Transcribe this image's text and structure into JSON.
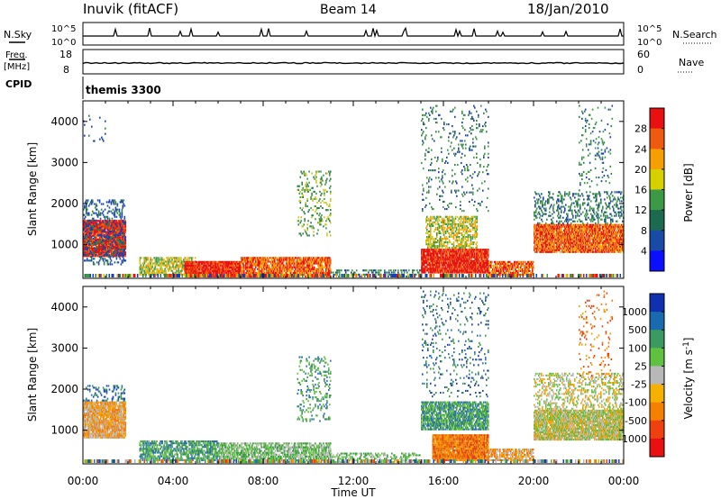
{
  "header": {
    "station": "Inuvik (fitACF)",
    "beam": "Beam 14",
    "date": "18/Jan/2010"
  },
  "top_panels": {
    "nsky_label": "N.Sky",
    "nsky_ticks": [
      "10^5",
      "10^0"
    ],
    "nsearch_label": "N.Search",
    "nsearch_ticks": [
      "10^5",
      "10^0"
    ],
    "freq_label": "Freq.",
    "freq_unit": "[MHz]",
    "freq_ticks": [
      "18",
      "8"
    ],
    "nave_label": "Nave",
    "nave_ticks": [
      "60",
      "0"
    ],
    "cpid_label": "CPID",
    "cpid_value": "themis 3300"
  },
  "chart_data": [
    {
      "type": "heatmap",
      "name": "power-panel",
      "xlabel": "",
      "ylabel": "Slant Range [km]",
      "y_ticks": [
        1000,
        2000,
        3000,
        4000
      ],
      "ylim": [
        180,
        4500
      ],
      "xlim_hours": [
        0,
        24
      ],
      "colorbar": {
        "label": "Power [dB]",
        "ticks": [
          "28",
          "24",
          "20",
          "16",
          "12",
          "8",
          "4"
        ],
        "colors": [
          "#e81010",
          "#f05a10",
          "#f5a000",
          "#d6d000",
          "#3c9a46",
          "#1c6a50",
          "#1a4aa8",
          "#0a10ff"
        ]
      },
      "scatter_colors": [
        "#1a3fb0",
        "#1a3fb0",
        "#2a8040",
        "#3c9a46",
        "#c8c820",
        "#f5a000",
        "#f06010",
        "#e81010"
      ]
    },
    {
      "type": "heatmap",
      "name": "velocity-panel",
      "xlabel": "Time UT",
      "ylabel": "Slant Range [km]",
      "y_ticks": [
        1000,
        2000,
        3000,
        4000
      ],
      "ylim": [
        180,
        4500
      ],
      "xlim_hours": [
        0,
        24
      ],
      "x_ticks": [
        "00:00",
        "04:00",
        "08:00",
        "12:00",
        "16:00",
        "20:00",
        "00:00"
      ],
      "colorbar": {
        "label": "Velocity [m s",
        "label_sup": "-1",
        "label_end": "]",
        "ticks": [
          "1000",
          "500",
          "100",
          "25",
          "-25",
          "-100",
          "-500",
          "-1000"
        ],
        "colors": [
          "#1030b0",
          "#1a6ab0",
          "#3a9a60",
          "#60c040",
          "#b8b8b8",
          "#f5b000",
          "#f58000",
          "#f04010",
          "#e81010"
        ]
      },
      "scatter_colors": [
        "#1a3fb0",
        "#2a70b0",
        "#3c9a46",
        "#60c040",
        "#b8b8b8",
        "#f5a000",
        "#f07810",
        "#e04010"
      ]
    }
  ]
}
